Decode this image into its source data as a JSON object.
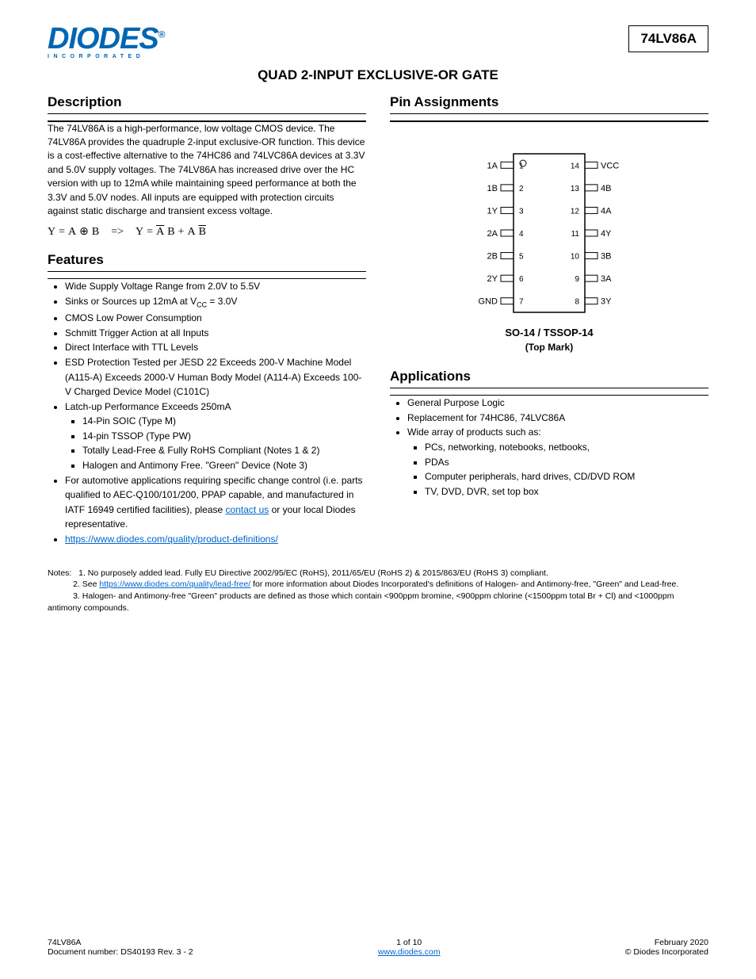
{
  "logo": {
    "main": "DIODES",
    "reg": "®",
    "sub": "INCORPORATED"
  },
  "partNumber": "74LV86A",
  "title": "QUAD 2-INPUT EXCLUSIVE-OR GATE",
  "description": {
    "heading": "Description",
    "body": "The 74LV86A is a high-performance, low voltage CMOS device. The 74LV86A provides the quadruple 2-input exclusive-OR function. This device is a cost-effective alternative to the 74HC86 and 74LVC86A devices at 3.3V and 5.0V supply voltages. The 74LV86A has increased drive over the HC version with up to 12mA while maintaining speed performance at both the 3.3V and 5.0V nodes. All inputs are equipped with protection circuits against static discharge and transient excess voltage.",
    "formula": {
      "lhs1": "Y",
      "eq1": "=",
      "a1": "A",
      "xor": "⊕",
      "b1": "B",
      "impl": "=>",
      "lhs2": "Y",
      "eq2": "=",
      "a2ov": "A",
      "b2": "B",
      "plus": "+",
      "a3": "A",
      "b3ov": "B"
    }
  },
  "features": {
    "heading": "Features",
    "items": [
      "Wide Supply Voltage Range from 2.0V to 5.5V",
      "Sinks or Sources up 12mA at V<sub>CC</sub> = 3.0V",
      "CMOS Low Power Consumption",
      "Schmitt Trigger Action at all Inputs",
      "Direct Interface with TTL Levels",
      "ESD Protection Tested per JESD 22 Exceeds 200-V Machine Model (A115-A) Exceeds 2000-V Human Body Model (A114-A) Exceeds 100-V Charged Device Model (C101C)",
      {
        "text": "Latch-up Performance Exceeds 250mA",
        "sub": [
          "14-Pin SOIC (Type M)",
          "14-pin TSSOP (Type PW)",
          "Totally Lead-Free & Fully RoHS Compliant (Notes 1 & 2)",
          "Halogen and Antimony Free. \"Green\" Device (Note 3)"
        ]
      },
      "For automotive applications requiring specific change control (i.e. parts qualified to AEC-Q100/101/200, PPAP capable, and manufactured in IATF 16949 certified facilities), please <a class=\"footer-link\" href=\"#\" data-name=\"contact-link\" data-interactable=\"true\">contact us</a> or your local Diodes representative.",
      "<a class=\"footer-link\" href=\"#\" data-name=\"product-policy-link\" data-interactable=\"true\">https://www.diodes.com/quality/product-definitions/</a>"
    ]
  },
  "pinAssignments": {
    "heading": "Pin Assignments",
    "packageLabel": "SO-14 / TSSOP-14",
    "topMark": "(Top Mark)",
    "leftPins": [
      "1A",
      "1B",
      "1Y",
      "2A",
      "2B",
      "2Y",
      "GND"
    ],
    "leftNums": [
      "1",
      "2",
      "3",
      "4",
      "5",
      "6",
      "7"
    ],
    "rightPins": [
      "VCC",
      "4B",
      "4A",
      "4Y",
      "3B",
      "3A",
      "3Y"
    ],
    "rightNums": [
      "14",
      "13",
      "12",
      "11",
      "10",
      "9",
      "8"
    ]
  },
  "applications": {
    "heading": "Applications",
    "items": [
      "General Purpose Logic",
      "Replacement for 74HC86, 74LVC86A",
      "Wide array of products such as:",
      {
        "text": "",
        "sub": [
          "PCs, networking, notebooks, netbooks,",
          "PDAs",
          "Computer peripherals, hard drives, CD/DVD ROM",
          "TV, DVD, DVR, set top box"
        ]
      }
    ]
  },
  "notes": {
    "heading": "Notes:",
    "items": [
      "1. No purposely added lead. Fully EU Directive 2002/95/EC (RoHS), 2011/65/EU (RoHS 2) & 2015/863/EU (RoHS 3) compliant.",
      "2. See <a class=\"footer-link\" href=\"#\" data-name=\"rohs-link\" data-interactable=\"true\">https://www.diodes.com/quality/lead-free/</a> for more information about Diodes Incorporated's definitions of Halogen- and Antimony-free, \"Green\" and Lead-free.",
      "3. Halogen- and Antimony-free \"Green\" products are defined as those which contain <900ppm bromine, <900ppm chlorine (<1500ppm total Br + Cl) and <1000ppm antimony compounds."
    ]
  },
  "footer": {
    "left1": "74LV86A",
    "left2": "Document number: DS40193 Rev. 3 - 2",
    "centerTop": "1 of 10",
    "centerLink": "www.diodes.com",
    "right1": "February 2020",
    "right2": "© Diodes Incorporated"
  },
  "colors": {
    "brandBlue": "#0066b3",
    "link": "#0066cc",
    "green": "#009900",
    "text": "#000000",
    "bg": "#ffffff"
  }
}
